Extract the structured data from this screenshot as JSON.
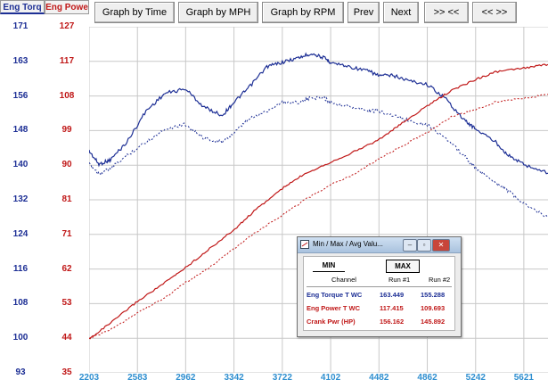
{
  "axes": {
    "torque": {
      "label": "Eng Torq",
      "color": "#1d2f95",
      "ticks": [
        "171",
        "163",
        "156",
        "148",
        "140",
        "132",
        "124",
        "116",
        "108",
        "100",
        "93"
      ]
    },
    "power": {
      "label": "Eng Powe",
      "color": "#c01818",
      "ticks": [
        "127",
        "117",
        "108",
        "99",
        "90",
        "81",
        "71",
        "62",
        "53",
        "44",
        "35"
      ]
    },
    "rpm_ticks": [
      "2203",
      "2583",
      "2962",
      "3342",
      "3722",
      "4102",
      "4482",
      "4862",
      "5242",
      "5621"
    ]
  },
  "toolbar": {
    "graph_time": "Graph by Time",
    "graph_mph": "Graph by MPH",
    "graph_rpm": "Graph by RPM",
    "prev": "Prev",
    "next": "Next",
    "zoom_in": ">> <<",
    "zoom_out": "<< >>"
  },
  "popup": {
    "title": "Min / Max / Avg Valu...",
    "tab_min": "MIN",
    "tab_max": "MAX",
    "selected_tab": "MAX",
    "headers": {
      "channel": "Channel",
      "run1": "Run #1",
      "run2": "Run #2"
    },
    "rows": [
      {
        "channel": "Eng Torque T WC",
        "run1": "163.449",
        "run2": "155.288",
        "color": "#1d2f95"
      },
      {
        "channel": "Eng Power T WC",
        "run1": "117.415",
        "run2": "109.693",
        "color": "#c01818"
      },
      {
        "channel": "Crank Pwr (HP)",
        "run1": "156.162",
        "run2": "145.892",
        "color": "#c01818"
      }
    ]
  },
  "chart_data": {
    "type": "line",
    "xlabel": "",
    "xlim": [
      2203,
      5811
    ],
    "torque_axis_range": [
      93,
      171
    ],
    "power_axis_range": [
      35,
      127
    ],
    "grid": true,
    "series": [
      {
        "axis": "torque",
        "color": "#1d2f95",
        "style": "solid",
        "x": [
          2203,
          2280,
          2370,
          2500,
          2650,
          2800,
          2962,
          3100,
          3250,
          3342,
          3450,
          3600,
          3722,
          3850,
          3950,
          4050,
          4102,
          4250,
          4400,
          4482,
          4600,
          4700,
          4862,
          5000,
          5150,
          5242,
          5400,
          5500,
          5621,
          5811
        ],
        "y": [
          143,
          140,
          141,
          145,
          152,
          156,
          157,
          153,
          151,
          154,
          157,
          162,
          163,
          164,
          165,
          164,
          163,
          162,
          161,
          160,
          160,
          159,
          158,
          155,
          150,
          148,
          145,
          142,
          140,
          138
        ]
      },
      {
        "axis": "torque",
        "color": "#1d2f95",
        "style": "dotted",
        "x": [
          2203,
          2280,
          2370,
          2500,
          2650,
          2800,
          2962,
          3100,
          3250,
          3342,
          3450,
          3600,
          3722,
          3850,
          3950,
          4050,
          4102,
          4250,
          4400,
          4482,
          4600,
          4700,
          4862,
          5000,
          5150,
          5242,
          5400,
          5500,
          5621,
          5811
        ],
        "y": [
          140,
          138,
          139,
          142,
          145,
          148,
          149,
          146,
          145,
          147,
          150,
          152,
          154,
          154,
          155,
          155,
          154,
          153,
          152,
          152,
          151,
          150,
          149,
          146,
          142,
          139,
          136,
          134,
          131,
          128
        ]
      },
      {
        "axis": "power",
        "color": "#c01818",
        "style": "solid",
        "x": [
          2203,
          2400,
          2583,
          2800,
          2962,
          3150,
          3342,
          3500,
          3722,
          3900,
          4102,
          4300,
          4482,
          4650,
          4862,
          5050,
          5242,
          5400,
          5621,
          5811
        ],
        "y": [
          44,
          49,
          54,
          59,
          63,
          68,
          73,
          78,
          84,
          88,
          91,
          94,
          97,
          101,
          106,
          110,
          113,
          115,
          116,
          117
        ]
      },
      {
        "axis": "power",
        "color": "#c01818",
        "style": "dotted",
        "x": [
          2203,
          2400,
          2583,
          2800,
          2962,
          3150,
          3342,
          3500,
          3722,
          3900,
          4102,
          4300,
          4482,
          4650,
          4862,
          5050,
          5242,
          5400,
          5621,
          5811
        ],
        "y": [
          44,
          47,
          51,
          55,
          59,
          63,
          68,
          72,
          77,
          81,
          85,
          88,
          92,
          95,
          99,
          103,
          105,
          107,
          108,
          109
        ]
      }
    ]
  }
}
